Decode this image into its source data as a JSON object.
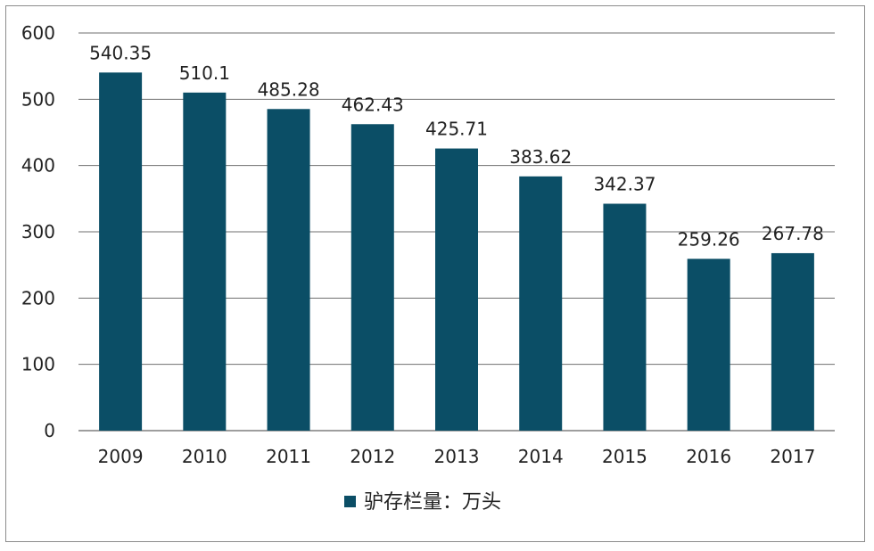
{
  "chart_data": {
    "type": "bar",
    "categories": [
      "2009",
      "2010",
      "2011",
      "2012",
      "2013",
      "2014",
      "2015",
      "2016",
      "2017"
    ],
    "series": [
      {
        "name": "驴存栏量：万头",
        "values": [
          540.35,
          510.1,
          485.28,
          462.43,
          425.71,
          383.62,
          342.37,
          259.26,
          267.78
        ],
        "labels": [
          "540.35",
          "510.1",
          "485.28",
          "462.43",
          "425.71",
          "383.62",
          "342.37",
          "259.26",
          "267.78"
        ],
        "color": "#0b4e66"
      }
    ],
    "yticks": [
      "0",
      "100",
      "200",
      "300",
      "400",
      "500",
      "600"
    ],
    "ylim": [
      0,
      600
    ],
    "grid": true,
    "legend": "bottom-center"
  }
}
